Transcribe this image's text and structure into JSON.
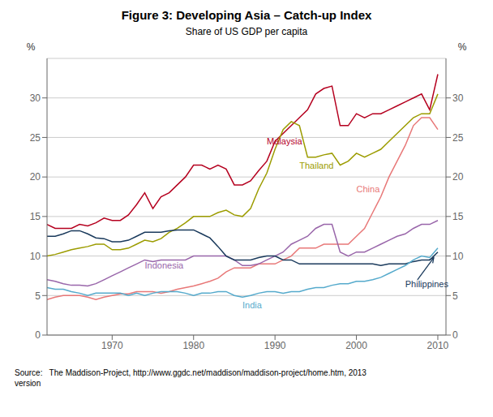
{
  "chart_data": {
    "type": "line",
    "title": "Figure 3: Developing Asia – Catch-up Index",
    "subtitle": "Share of US GDP per capita",
    "source": [
      "Source:   The Maddison-Project, http://www.ggdc.net/maddison/maddison-project/home.htm, 2013",
      "version"
    ],
    "ylabel": "%",
    "y2label": "%",
    "xlim": [
      1962,
      2011
    ],
    "xticks": [
      1970,
      1980,
      1990,
      2000,
      2010
    ],
    "ylim": [
      0,
      35
    ],
    "yticks": [
      0,
      5,
      10,
      15,
      20,
      25,
      30
    ],
    "y2lim": [
      0,
      35
    ],
    "y2ticks": [
      0,
      5,
      10,
      15,
      20,
      25,
      30
    ],
    "grid": true,
    "x": [
      1962,
      1963,
      1964,
      1965,
      1966,
      1967,
      1968,
      1969,
      1970,
      1971,
      1972,
      1973,
      1974,
      1975,
      1976,
      1977,
      1978,
      1979,
      1980,
      1981,
      1982,
      1983,
      1984,
      1985,
      1986,
      1987,
      1988,
      1989,
      1990,
      1991,
      1992,
      1993,
      1994,
      1995,
      1996,
      1997,
      1998,
      1999,
      2000,
      2001,
      2002,
      2003,
      2004,
      2005,
      2006,
      2007,
      2008,
      2009,
      2010
    ],
    "series": [
      {
        "name": "Malaysia",
        "color": "#b5001f",
        "values": [
          14.0,
          13.5,
          13.5,
          13.5,
          14.0,
          13.8,
          14.2,
          14.8,
          14.5,
          14.5,
          15.2,
          16.5,
          18.0,
          16.0,
          17.5,
          18.0,
          19.0,
          20.0,
          21.5,
          21.5,
          21.0,
          21.5,
          21.0,
          19.0,
          19.0,
          19.5,
          20.8,
          22.0,
          24.5,
          25.5,
          26.5,
          27.5,
          28.5,
          30.5,
          31.2,
          31.5,
          26.5,
          26.5,
          28.0,
          27.5,
          28.0,
          28.0,
          28.5,
          29.0,
          29.5,
          30.0,
          30.5,
          28.5,
          33.0
        ]
      },
      {
        "name": "Thailand",
        "color": "#9c9c00",
        "values": [
          10.0,
          10.2,
          10.5,
          10.8,
          11.0,
          11.2,
          11.5,
          11.5,
          10.8,
          10.8,
          11.0,
          11.5,
          12.0,
          11.8,
          12.2,
          13.0,
          13.5,
          14.2,
          15.0,
          15.0,
          15.0,
          15.5,
          15.8,
          15.2,
          15.0,
          16.0,
          18.5,
          20.5,
          23.5,
          26.0,
          27.0,
          26.5,
          22.5,
          22.5,
          22.8,
          23.0,
          21.5,
          22.0,
          23.0,
          22.5,
          23.0,
          23.5,
          24.5,
          25.5,
          26.5,
          27.5,
          28.0,
          28.0,
          30.5
        ]
      },
      {
        "name": "China",
        "color": "#e87878",
        "values": [
          4.5,
          4.8,
          5.0,
          5.0,
          5.0,
          4.8,
          4.5,
          4.8,
          5.0,
          5.2,
          5.2,
          5.5,
          5.5,
          5.5,
          5.3,
          5.5,
          5.8,
          6.0,
          6.2,
          6.5,
          6.8,
          7.2,
          8.0,
          8.5,
          8.5,
          8.5,
          9.0,
          9.0,
          9.0,
          9.5,
          10.0,
          11.0,
          11.0,
          11.0,
          11.5,
          11.5,
          11.5,
          11.5,
          12.5,
          13.5,
          15.5,
          17.5,
          20.0,
          22.0,
          24.0,
          26.5,
          27.5,
          27.5,
          26.0
        ]
      },
      {
        "name": "Indonesia",
        "color": "#9966aa",
        "values": [
          7.0,
          6.8,
          6.5,
          6.3,
          6.3,
          6.2,
          6.5,
          7.0,
          7.5,
          8.0,
          8.5,
          9.0,
          9.5,
          9.3,
          9.5,
          9.5,
          9.5,
          9.5,
          10.0,
          10.0,
          10.0,
          10.0,
          10.0,
          9.5,
          8.8,
          8.8,
          9.0,
          9.5,
          10.0,
          10.5,
          11.5,
          12.0,
          12.5,
          13.5,
          14.0,
          14.0,
          10.5,
          10.0,
          10.5,
          10.5,
          11.0,
          11.5,
          12.0,
          12.5,
          12.8,
          13.5,
          14.0,
          14.0,
          14.5
        ]
      },
      {
        "name": "Philippines",
        "color": "#1a3a5c",
        "values": [
          12.5,
          12.5,
          12.8,
          13.2,
          13.2,
          12.8,
          12.3,
          12.2,
          11.8,
          11.8,
          12.0,
          12.5,
          13.0,
          13.0,
          13.0,
          13.2,
          13.3,
          13.3,
          13.3,
          12.8,
          12.3,
          11.2,
          10.0,
          9.5,
          9.5,
          9.5,
          9.8,
          10.0,
          10.0,
          9.5,
          9.5,
          9.0,
          9.0,
          9.0,
          9.0,
          9.0,
          9.0,
          9.0,
          9.0,
          9.0,
          9.0,
          8.8,
          9.0,
          9.0,
          9.0,
          9.3,
          9.5,
          9.5,
          10.5
        ]
      },
      {
        "name": "India",
        "color": "#55aacc",
        "values": [
          6.0,
          5.8,
          5.8,
          5.5,
          5.3,
          5.0,
          5.3,
          5.3,
          5.3,
          5.3,
          5.0,
          5.3,
          5.0,
          5.3,
          5.5,
          5.5,
          5.5,
          5.3,
          5.0,
          5.3,
          5.3,
          5.5,
          5.5,
          5.0,
          4.8,
          5.0,
          5.3,
          5.5,
          5.5,
          5.3,
          5.5,
          5.5,
          5.8,
          6.0,
          6.0,
          6.3,
          6.5,
          6.5,
          6.8,
          6.8,
          7.0,
          7.3,
          7.8,
          8.3,
          8.8,
          9.5,
          10.0,
          9.8,
          11.0
        ]
      }
    ],
    "annotations": [
      {
        "text": "Malaysia",
        "x": 1989,
        "y": 24.5,
        "color": "#b5001f"
      },
      {
        "text": "Thailand",
        "x": 1993,
        "y": 21.5,
        "color": "#9c9c00"
      },
      {
        "text": "China",
        "x": 2000,
        "y": 18.5,
        "color": "#e87878"
      },
      {
        "text": "Indonesia",
        "x": 1974,
        "y": 8.8,
        "color": "#9966aa"
      },
      {
        "text": "Philippines",
        "x": 2006,
        "y": 6.5,
        "color": "#1a3a5c",
        "arrow": {
          "from": [
            2007.5,
            7.0
          ],
          "to": [
            2009.5,
            9.8
          ],
          "color": "#1a3a5c"
        }
      },
      {
        "text": "India",
        "x": 1986,
        "y": 3.8,
        "color": "#55aacc"
      }
    ]
  }
}
